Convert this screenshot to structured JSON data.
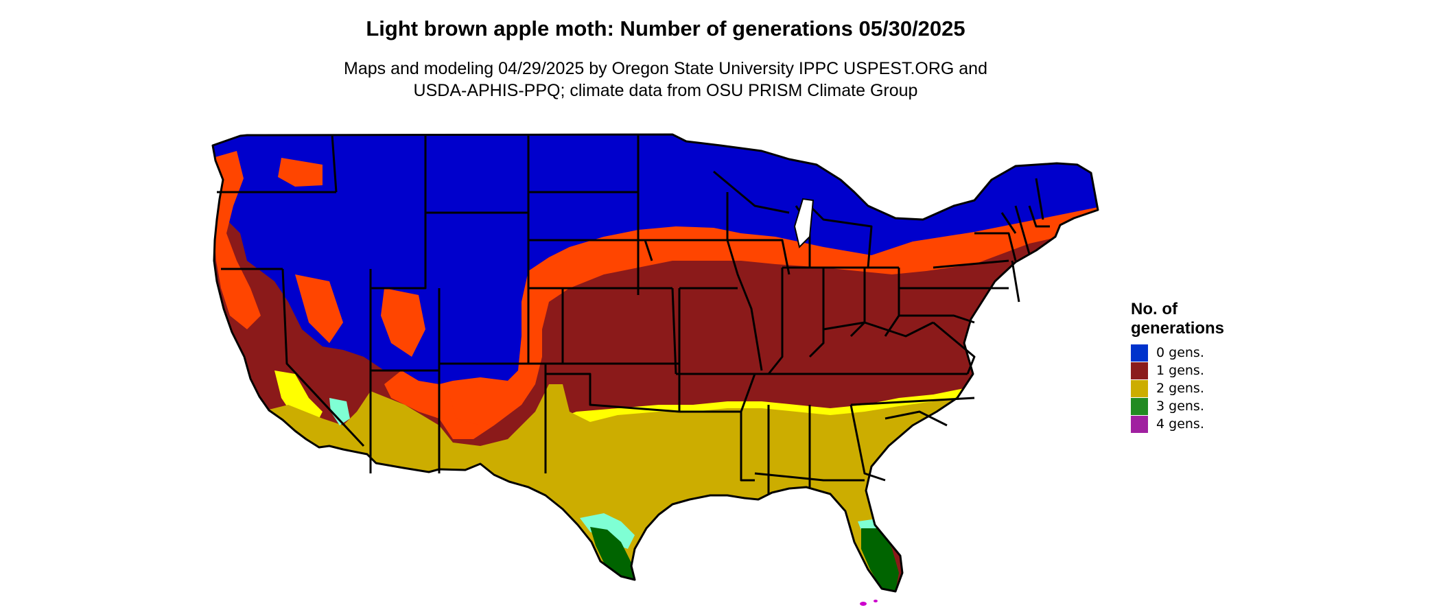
{
  "title": "Light brown apple moth: Number of generations 05/30/2025",
  "subtitle_line1": "Maps and modeling 04/29/2025 by Oregon State University IPPC USPEST.ORG and",
  "subtitle_line2": "USDA-APHIS-PPQ; climate data from OSU PRISM Climate Group",
  "legend": {
    "title": "No. of generations",
    "items": [
      {
        "label": "0 gens.",
        "color": "#0033cc"
      },
      {
        "label": "1 gens.",
        "color": "#8b1c1c"
      },
      {
        "label": "2 gens.",
        "color": "#ccad00"
      },
      {
        "label": "3 gens.",
        "color": "#228b22"
      },
      {
        "label": "4 gens.",
        "color": "#a020a0"
      }
    ]
  },
  "colors": {
    "zero_gens": "#0000cc",
    "partial_first_gen": "#ff4500",
    "one_gen": "#8b1a1a",
    "two_gens_partial": "#ffff00",
    "two_gens": "#ccad00",
    "three_gens_partial": "#7fffd4",
    "three_gens": "#006400",
    "four_gens": "#cc00cc",
    "boundary": "#000000"
  }
}
